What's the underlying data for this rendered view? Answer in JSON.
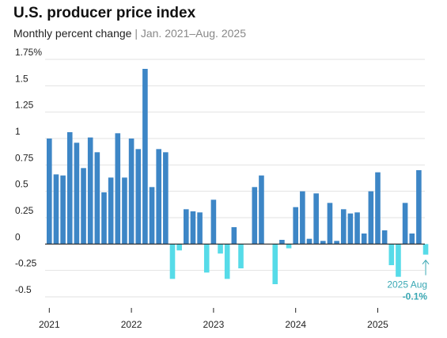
{
  "chart_data": {
    "type": "bar",
    "title": "U.S. producer price index",
    "subtitle": "Monthly percent change",
    "subtitle_range": "Jan. 2021–Aug. 2025",
    "y_ticks": [
      "1.75%",
      "1.5",
      "1.25",
      "1",
      "0.75",
      "0.5",
      "0.25",
      "0",
      "-0.25",
      "-0.5"
    ],
    "ylim": [
      -0.5,
      1.75
    ],
    "x_ticks": [
      "2021",
      "2022",
      "2023",
      "2024",
      "2025"
    ],
    "categories": [
      "2021-01",
      "2021-02",
      "2021-03",
      "2021-04",
      "2021-05",
      "2021-06",
      "2021-07",
      "2021-08",
      "2021-09",
      "2021-10",
      "2021-11",
      "2021-12",
      "2022-01",
      "2022-02",
      "2022-03",
      "2022-04",
      "2022-05",
      "2022-06",
      "2022-07",
      "2022-08",
      "2022-09",
      "2022-10",
      "2022-11",
      "2022-12",
      "2023-01",
      "2023-02",
      "2023-03",
      "2023-04",
      "2023-05",
      "2023-06",
      "2023-07",
      "2023-08",
      "2023-09",
      "2023-10",
      "2023-11",
      "2023-12",
      "2024-01",
      "2024-02",
      "2024-03",
      "2024-04",
      "2024-05",
      "2024-06",
      "2024-07",
      "2024-08",
      "2024-09",
      "2024-10",
      "2024-11",
      "2024-12",
      "2025-01",
      "2025-02",
      "2025-03",
      "2025-04",
      "2025-05",
      "2025-06",
      "2025-07",
      "2025-08"
    ],
    "values": [
      1.0,
      0.66,
      0.65,
      1.06,
      0.96,
      0.72,
      1.01,
      0.87,
      0.49,
      0.63,
      1.05,
      0.63,
      1.0,
      0.9,
      1.66,
      0.54,
      0.9,
      0.87,
      -0.33,
      -0.06,
      0.33,
      0.31,
      0.3,
      -0.27,
      0.42,
      -0.09,
      -0.33,
      0.16,
      -0.23,
      0.0,
      0.54,
      0.65,
      0.0,
      -0.38,
      0.04,
      -0.04,
      0.35,
      0.5,
      0.05,
      0.48,
      0.03,
      0.39,
      0.03,
      0.33,
      0.29,
      0.3,
      0.1,
      0.5,
      0.68,
      0.13,
      -0.2,
      -0.31,
      0.39,
      0.1,
      0.7,
      -0.1
    ],
    "colors": {
      "positive": "#3d86c6",
      "negative": "#56dbe8",
      "annotation": "#3aa8b4"
    },
    "annotation": {
      "label": "2025 Aug",
      "value_label": "-0.1%",
      "category": "2025-08"
    }
  }
}
